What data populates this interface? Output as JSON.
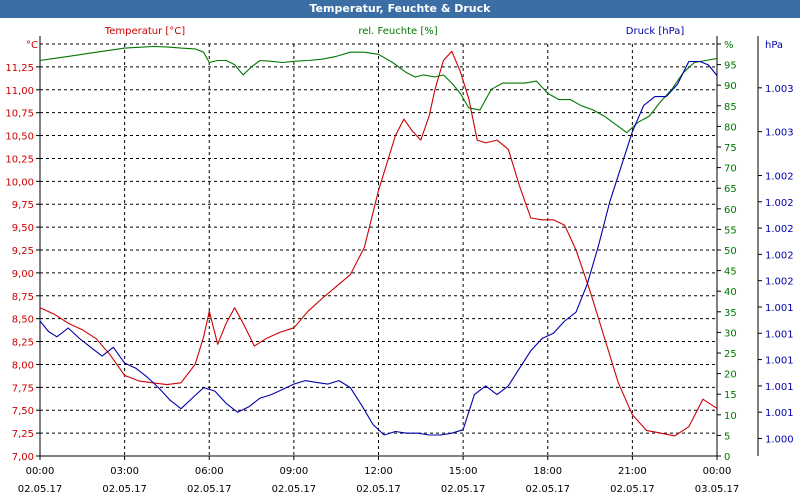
{
  "window": {
    "title": "Temperatur, Feuchte & Druck"
  },
  "colors": {
    "temperature": "#cc0000",
    "humidity": "#007700",
    "pressure": "#0000aa",
    "titlebar": "#3b6ea5",
    "grid": "#000000"
  },
  "chart_data": {
    "type": "line",
    "title": "Temperatur, Feuchte & Druck",
    "legend": [
      "Temperatur [°C]",
      "rel. Feuchte [%]",
      "Druck [hPa]"
    ],
    "grid": true,
    "x_axis": {
      "range": [
        "02.05.17 00:00",
        "03.05.17 00:00"
      ],
      "tick_time": [
        "00:00",
        "03:00",
        "06:00",
        "09:00",
        "12:00",
        "15:00",
        "18:00",
        "21:00",
        "00:00"
      ],
      "tick_date": [
        "02.05.17",
        "02.05.17",
        "02.05.17",
        "02.05.17",
        "02.05.17",
        "02.05.17",
        "02.05.17",
        "02.05.17",
        "03.05.17"
      ]
    },
    "y_left": {
      "unit": "°C",
      "ylim": [
        7.0,
        11.5
      ],
      "ticks": [
        "7,00",
        "7,25",
        "7,50",
        "7,75",
        "8,00",
        "8,25",
        "8,50",
        "8,75",
        "9,00",
        "9,25",
        "9,50",
        "9,75",
        "10,00",
        "10,25",
        "10,50",
        "10,75",
        "11,00",
        "11,25"
      ]
    },
    "y_mid": {
      "unit": "%",
      "ylim": [
        0,
        100
      ],
      "ticks": [
        "0",
        "5",
        "10",
        "15",
        "20",
        "25",
        "30",
        "35",
        "40",
        "45",
        "50",
        "55",
        "60",
        "65",
        "70",
        "75",
        "80",
        "85",
        "90",
        "95",
        "%"
      ]
    },
    "y_right": {
      "unit": "hPa",
      "ylim": [
        1000.85,
        1003.2
      ],
      "ticks": [
        "1.000",
        "1.001",
        "1.001",
        "1.001",
        "1.001",
        "1.001",
        "1.002",
        "1.002",
        "1.002",
        "1.002",
        "1.002",
        "1.003",
        "1.003"
      ]
    },
    "series": [
      {
        "name": "Temperatur [°C]",
        "axis": "left",
        "x_hours": [
          0,
          0.5,
          1,
          1.5,
          2,
          2.5,
          3,
          3.5,
          4,
          4.5,
          5,
          5.5,
          5.8,
          6,
          6.3,
          6.6,
          6.9,
          7.2,
          7.6,
          8,
          8.5,
          9,
          9.5,
          10,
          10.5,
          11,
          11.5,
          12,
          12.3,
          12.6,
          12.9,
          13.2,
          13.5,
          13.8,
          14,
          14.3,
          14.6,
          14.9,
          15.2,
          15.5,
          15.8,
          16.2,
          16.6,
          17,
          17.4,
          17.8,
          18.2,
          18.6,
          19,
          19.5,
          20,
          20.5,
          21,
          21.5,
          22,
          22.5,
          23,
          23.5,
          24
        ],
        "values": [
          8.62,
          8.55,
          8.45,
          8.38,
          8.28,
          8.1,
          7.88,
          7.82,
          7.8,
          7.78,
          7.8,
          8.0,
          8.3,
          8.58,
          8.22,
          8.45,
          8.62,
          8.45,
          8.2,
          8.28,
          8.35,
          8.4,
          8.58,
          8.72,
          8.85,
          8.98,
          9.28,
          9.9,
          10.2,
          10.5,
          10.68,
          10.55,
          10.45,
          10.72,
          11.0,
          11.32,
          11.42,
          11.2,
          10.9,
          10.45,
          10.42,
          10.45,
          10.35,
          9.95,
          9.6,
          9.58,
          9.58,
          9.52,
          9.25,
          8.8,
          8.3,
          7.8,
          7.45,
          7.28,
          7.25,
          7.22,
          7.32,
          7.62,
          7.52
        ]
      },
      {
        "name": "rel. Feuchte [%]",
        "axis": "mid",
        "x_hours": [
          0,
          0.5,
          1,
          1.5,
          2,
          2.5,
          3,
          3.5,
          4,
          4.5,
          5,
          5.5,
          5.8,
          6,
          6.3,
          6.6,
          6.9,
          7.2,
          7.5,
          7.8,
          8.2,
          8.6,
          9,
          9.5,
          10,
          10.5,
          11,
          11.5,
          12,
          12.5,
          13,
          13.3,
          13.6,
          14,
          14.3,
          14.6,
          14.9,
          15.2,
          15.6,
          16,
          16.4,
          16.8,
          17.2,
          17.6,
          18,
          18.4,
          18.8,
          19.2,
          19.6,
          20,
          20.4,
          20.8,
          21.2,
          21.6,
          22,
          22.4,
          22.8,
          23.2,
          23.6,
          24
        ],
        "values": [
          96,
          96.5,
          97,
          97.5,
          98,
          98.5,
          99,
          99.2,
          99.4,
          99.3,
          99,
          98.8,
          98,
          95.5,
          96,
          96,
          95,
          92.5,
          94.5,
          96,
          95.8,
          95.5,
          95.8,
          96,
          96.3,
          97,
          98,
          98,
          97.5,
          95.5,
          93,
          92,
          92.5,
          92,
          92.5,
          90.5,
          88,
          84.5,
          84,
          89,
          90.5,
          90.5,
          90.5,
          91,
          88,
          86.5,
          86.5,
          85,
          84,
          82.5,
          80.5,
          78.5,
          81,
          82.5,
          86,
          89,
          93,
          95.5,
          96,
          96.5
        ]
      },
      {
        "name": "Druck [hPa]",
        "axis": "right",
        "x_hours": [
          0,
          0.3,
          0.6,
          1,
          1.4,
          1.8,
          2.2,
          2.6,
          3,
          3.4,
          3.8,
          4.2,
          4.6,
          5,
          5.4,
          5.8,
          6.2,
          6.6,
          7,
          7.4,
          7.8,
          8.2,
          8.6,
          9,
          9.4,
          9.8,
          10.2,
          10.6,
          11,
          11.4,
          11.8,
          12.2,
          12.6,
          13,
          13.4,
          13.8,
          14.2,
          14.6,
          15,
          15.4,
          15.8,
          16.2,
          16.6,
          17,
          17.4,
          17.8,
          18.2,
          18.6,
          19,
          19.4,
          19.8,
          20.2,
          20.6,
          21,
          21.4,
          21.8,
          22.2,
          22.6,
          23,
          23.4,
          23.7,
          24
        ],
        "values": [
          1001.62,
          1001.56,
          1001.53,
          1001.58,
          1001.52,
          1001.47,
          1001.42,
          1001.47,
          1001.38,
          1001.35,
          1001.3,
          1001.24,
          1001.17,
          1001.12,
          1001.18,
          1001.24,
          1001.22,
          1001.15,
          1001.1,
          1001.13,
          1001.18,
          1001.2,
          1001.23,
          1001.26,
          1001.28,
          1001.27,
          1001.26,
          1001.28,
          1001.24,
          1001.14,
          1001.03,
          1000.97,
          1000.99,
          1000.98,
          1000.98,
          1000.97,
          1000.97,
          1000.98,
          1001.0,
          1001.2,
          1001.25,
          1001.2,
          1001.25,
          1001.35,
          1001.45,
          1001.52,
          1001.55,
          1001.62,
          1001.67,
          1001.83,
          1002.05,
          1002.3,
          1002.5,
          1002.7,
          1002.85,
          1002.9,
          1002.9,
          1002.97,
          1003.1,
          1003.1,
          1003.08,
          1003.02
        ]
      }
    ]
  }
}
